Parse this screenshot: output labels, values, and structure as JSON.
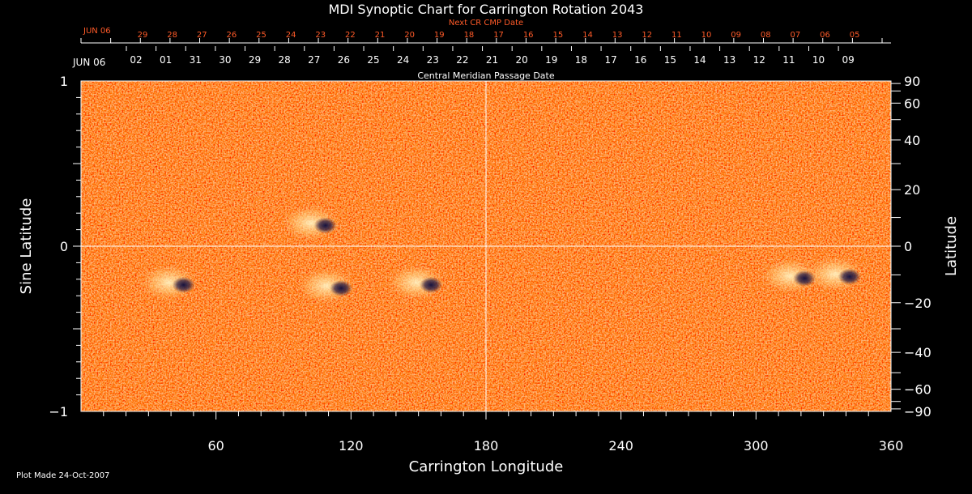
{
  "chart_data": {
    "type": "heatmap",
    "title": "MDI Synoptic Chart for Carrington Rotation 2043",
    "xlabel": "Carrington Longitude",
    "ylabel_left": "Sine Latitude",
    "ylabel_right": "Latitude",
    "xlim": [
      0,
      360
    ],
    "ylim": [
      -1,
      1
    ],
    "x_ticks": [
      "60",
      "120",
      "180",
      "240",
      "300",
      "360"
    ],
    "y_left_ticks": [
      {
        "value": 1,
        "label": "1"
      },
      {
        "value": 0,
        "label": "0"
      },
      {
        "value": -1,
        "label": "−1"
      }
    ],
    "y_right_ticks": [
      {
        "deg": 90,
        "label": "90"
      },
      {
        "deg": 60,
        "label": "60"
      },
      {
        "deg": 40,
        "label": "40"
      },
      {
        "deg": 20,
        "label": "20"
      },
      {
        "deg": 0,
        "label": "0"
      },
      {
        "deg": -20,
        "label": "−20"
      },
      {
        "deg": -40,
        "label": "−40"
      },
      {
        "deg": -60,
        "label": "−60"
      },
      {
        "deg": -90,
        "label": "−90"
      }
    ],
    "top_axis_black": {
      "label": "Central Meridian Passage Date",
      "month_label": "JUN 06",
      "dates": [
        "02",
        "01",
        "31",
        "30",
        "29",
        "28",
        "27",
        "26",
        "25",
        "24",
        "23",
        "22",
        "21",
        "20",
        "19",
        "18",
        "17",
        "16",
        "15",
        "14",
        "13",
        "12",
        "11",
        "10",
        "09"
      ]
    },
    "top_axis_red": {
      "label": "Next CR CMP Date",
      "month_label": "JUN 06",
      "dates": [
        "29",
        "28",
        "27",
        "26",
        "25",
        "24",
        "23",
        "22",
        "21",
        "20",
        "19",
        "18",
        "17",
        "16",
        "15",
        "14",
        "13",
        "12",
        "11",
        "10",
        "09",
        "08",
        "07",
        "06",
        "05"
      ]
    },
    "active_regions": [
      {
        "lon": 105,
        "sinlat": 0.14,
        "polarity": "mixed"
      },
      {
        "lon": 42,
        "sinlat": -0.22,
        "polarity": "mixed"
      },
      {
        "lon": 112,
        "sinlat": -0.24,
        "polarity": "mixed"
      },
      {
        "lon": 152,
        "sinlat": -0.22,
        "polarity": "mixed"
      },
      {
        "lon": 318,
        "sinlat": -0.18,
        "polarity": "mixed"
      },
      {
        "lon": 338,
        "sinlat": -0.17,
        "polarity": "mixed"
      }
    ],
    "colors": {
      "background": "#ff5a14",
      "positive": "#fff0b0",
      "negative": "#0a0a3c",
      "grid": "#ffffff"
    }
  },
  "footer": {
    "plot_made": "Plot Made 24-Oct-2007"
  }
}
